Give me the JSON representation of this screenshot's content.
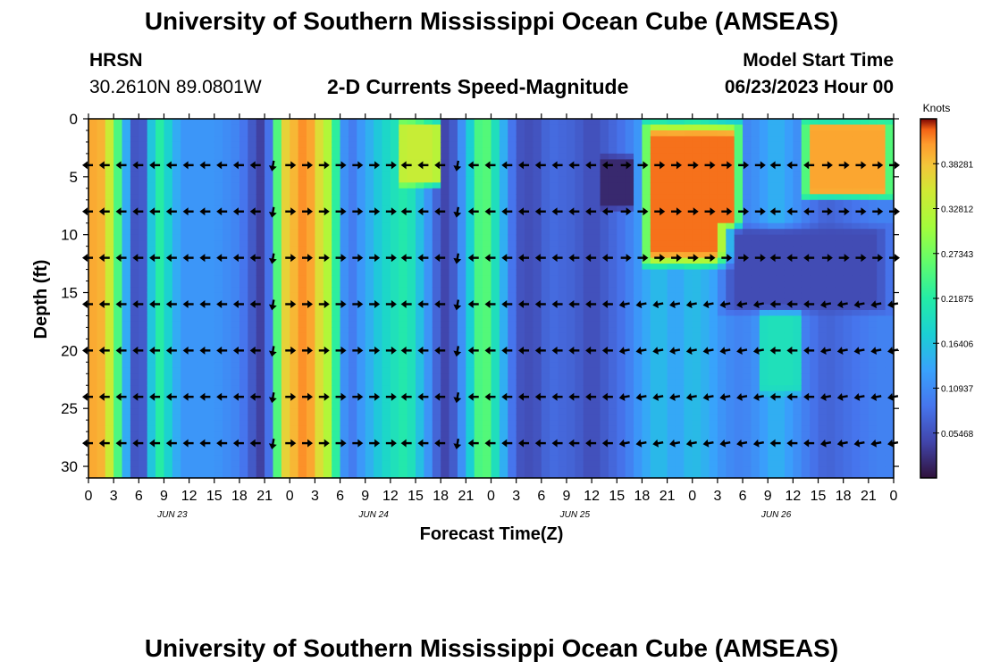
{
  "page": {
    "title": "University of Southern Mississippi Ocean Cube (AMSEAS)",
    "title_repeat": "University of Southern Mississippi Ocean Cube (AMSEAS)",
    "station_name": "HRSN",
    "station_coords": "30.2610N  89.0801W",
    "model_start_label": "Model Start Time",
    "model_start_value": "06/23/2023 Hour 00"
  },
  "chart_data": {
    "type": "heatmap",
    "title": "2-D Currents Speed-Magnitude",
    "xlabel": "Forecast Time(Z)",
    "ylabel": "Depth (ft)",
    "colorbar_label": "Knots",
    "x_range_hours": [
      0,
      96
    ],
    "y_range_ft": [
      0,
      31
    ],
    "x_tick_labels": [
      "0",
      "3",
      "6",
      "9",
      "12",
      "15",
      "18",
      "21",
      "0",
      "3",
      "6",
      "9",
      "12",
      "15",
      "18",
      "21",
      "0",
      "3",
      "6",
      "9",
      "12",
      "15",
      "18",
      "21",
      "0",
      "3",
      "6",
      "9",
      "12",
      "15",
      "18",
      "21",
      "0"
    ],
    "date_labels": [
      {
        "label": "JUN 23",
        "hour": 10
      },
      {
        "label": "JUN 24",
        "hour": 34
      },
      {
        "label": "JUN 25",
        "hour": 58
      },
      {
        "label": "JUN 26",
        "hour": 82
      }
    ],
    "y_ticks": [
      0,
      5,
      10,
      15,
      20,
      25,
      30
    ],
    "colorbar_ticks": [
      "0.05468",
      "0.10937",
      "0.16406",
      "0.21875",
      "0.27343",
      "0.32812",
      "0.38281"
    ],
    "colorbar_values": [
      0.05468,
      0.10937,
      0.16406,
      0.21875,
      0.27343,
      0.32812,
      0.38281
    ],
    "colorbar_range": [
      0,
      0.4375
    ],
    "vector_depths_ft": [
      4,
      8,
      12,
      16,
      20,
      24,
      28
    ],
    "vector_hours": [
      0,
      2,
      4,
      6,
      8,
      10,
      12,
      14,
      16,
      18,
      20,
      22,
      24,
      26,
      28,
      30,
      32,
      34,
      36,
      38,
      40,
      42,
      44,
      46,
      48,
      50,
      52,
      54,
      56,
      58,
      60,
      62,
      64,
      66,
      68,
      70,
      72,
      74,
      76,
      78,
      80,
      82,
      84,
      86,
      88,
      90,
      92,
      94,
      96
    ],
    "column_speed_profile": [
      {
        "hour": 0,
        "speed": 0.4
      },
      {
        "hour": 2,
        "speed": 0.39
      },
      {
        "hour": 4,
        "speed": 0.2
      },
      {
        "hour": 5,
        "speed": 0.08
      },
      {
        "hour": 6,
        "speed": 0.04
      },
      {
        "hour": 7,
        "speed": 0.09
      },
      {
        "hour": 8,
        "speed": 0.24
      },
      {
        "hour": 9,
        "speed": 0.2
      },
      {
        "hour": 11,
        "speed": 0.12
      },
      {
        "hour": 15,
        "speed": 0.12
      },
      {
        "hour": 18,
        "speed": 0.1
      },
      {
        "hour": 20,
        "speed": 0.05
      },
      {
        "hour": 21,
        "speed": 0.03
      },
      {
        "hour": 22,
        "speed": 0.14
      },
      {
        "hour": 23,
        "speed": 0.36
      },
      {
        "hour": 26,
        "speed": 0.42
      },
      {
        "hour": 29,
        "speed": 0.3
      },
      {
        "hour": 30,
        "speed": 0.15
      },
      {
        "hour": 31,
        "speed": 0.08
      },
      {
        "hour": 32,
        "speed": 0.11
      },
      {
        "hour": 35,
        "speed": 0.18
      },
      {
        "hour": 38,
        "speed": 0.22
      },
      {
        "hour": 40,
        "speed": 0.14
      },
      {
        "hour": 42,
        "speed": 0.05
      },
      {
        "hour": 43,
        "speed": 0.04
      },
      {
        "hour": 45,
        "speed": 0.14
      },
      {
        "hour": 47,
        "speed": 0.28
      },
      {
        "hour": 49,
        "speed": 0.17
      },
      {
        "hour": 51,
        "speed": 0.06
      },
      {
        "hour": 53,
        "speed": 0.05
      },
      {
        "hour": 55,
        "speed": 0.08
      },
      {
        "hour": 58,
        "speed": 0.07
      },
      {
        "hour": 60,
        "speed": 0.05
      },
      {
        "hour": 62,
        "speed": 0.07
      },
      {
        "hour": 64,
        "speed": 0.09
      },
      {
        "hour": 66,
        "speed": 0.13
      },
      {
        "hour": 68,
        "speed": 0.16
      },
      {
        "hour": 70,
        "speed": 0.13
      },
      {
        "hour": 72,
        "speed": 0.16
      },
      {
        "hour": 74,
        "speed": 0.14
      },
      {
        "hour": 76,
        "speed": 0.11
      },
      {
        "hour": 78,
        "speed": 0.1
      },
      {
        "hour": 80,
        "speed": 0.12
      },
      {
        "hour": 82,
        "speed": 0.15
      },
      {
        "hour": 84,
        "speed": 0.12
      },
      {
        "hour": 86,
        "speed": 0.09
      },
      {
        "hour": 88,
        "speed": 0.07
      },
      {
        "hour": 90,
        "speed": 0.08
      },
      {
        "hour": 92,
        "speed": 0.09
      },
      {
        "hour": 94,
        "speed": 0.1
      },
      {
        "hour": 96,
        "speed": 0.1
      }
    ],
    "surface_features": [
      {
        "name": "surface-red-jun25",
        "hour_start": 66,
        "hour_end": 78,
        "depth_start": 0,
        "depth_end": 13,
        "speed": 0.42
      },
      {
        "name": "surface-red-jun26",
        "hour_start": 85,
        "hour_end": 96,
        "depth_start": 0,
        "depth_end": 7,
        "speed": 0.4
      },
      {
        "name": "subsurface-orange-jun26",
        "hour_start": 80,
        "hour_end": 85,
        "depth_start": 16,
        "depth_end": 24,
        "speed": 0.2
      },
      {
        "name": "surface-red-jun24-afternoon",
        "hour_start": 37,
        "hour_end": 42,
        "depth_start": 0,
        "depth_end": 6,
        "speed": 0.34
      },
      {
        "name": "dark-patch-jun25-15z",
        "hour_start": 61,
        "hour_end": 65,
        "depth_start": 3,
        "depth_end": 8,
        "speed": 0.02
      },
      {
        "name": "blue-mid-band-jun26",
        "hour_start": 75,
        "hour_end": 96,
        "depth_start": 9,
        "depth_end": 17,
        "speed": 0.05
      }
    ],
    "arrow_direction_default": "west",
    "arrow_direction_east_hours": [
      [
        22,
        36
      ],
      [
        64,
        80
      ],
      [
        88,
        96
      ]
    ],
    "arrow_direction_south_hours": [
      [
        21,
        23
      ],
      [
        43,
        45
      ]
    ]
  }
}
